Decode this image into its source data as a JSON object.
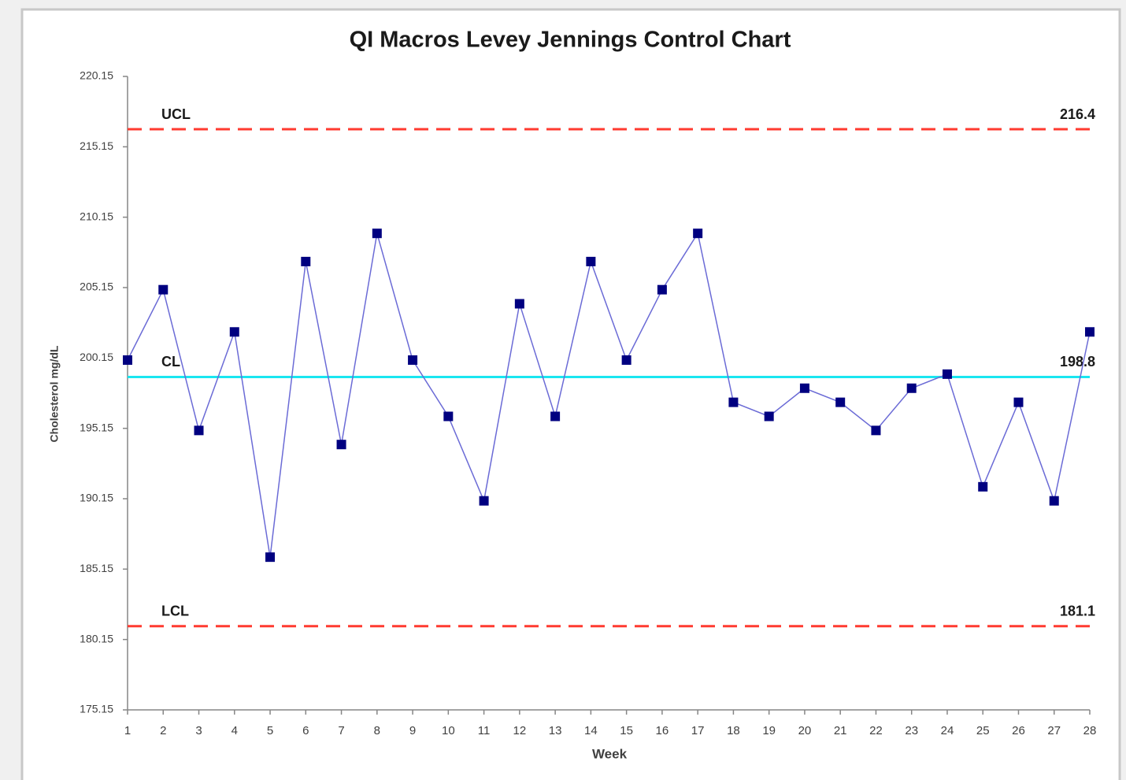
{
  "chart_data": {
    "type": "line",
    "title": "QI Macros Levey Jennings Control Chart",
    "x_label": "Week",
    "y_label": "Cholesterol mg/dL",
    "x": [
      1,
      2,
      3,
      4,
      5,
      6,
      7,
      8,
      9,
      10,
      11,
      12,
      13,
      14,
      15,
      16,
      17,
      18,
      19,
      20,
      21,
      22,
      23,
      24,
      25,
      26,
      27,
      28
    ],
    "xlim": [
      1,
      28
    ],
    "series": [
      {
        "color": "#000080",
        "line_color": "#6b6bd6",
        "values": [
          200,
          205,
          195,
          202,
          186,
          207,
          194,
          209,
          200,
          196,
          190,
          204,
          196,
          207,
          200,
          205,
          209,
          197,
          196,
          198,
          197,
          195,
          198,
          199,
          191,
          197,
          190,
          202
        ]
      }
    ],
    "ylim": [
      175.15,
      220.15
    ],
    "yticks": [
      {
        "value": 175.15,
        "label": "175.15"
      },
      {
        "value": 180.15,
        "label": "180.15"
      },
      {
        "value": 185.15,
        "label": "185.15"
      },
      {
        "value": 190.15,
        "label": "190.15"
      },
      {
        "value": 195.15,
        "label": "195.15"
      },
      {
        "value": 200.15,
        "label": "200.15"
      },
      {
        "value": 205.15,
        "label": "205.15"
      },
      {
        "value": 210.15,
        "label": "210.15"
      },
      {
        "value": 215.15,
        "label": "215.15"
      },
      {
        "value": 220.15,
        "label": "220.15"
      }
    ],
    "control_lines": [
      {
        "name": "UCL",
        "value": 216.4,
        "color": "#ff3b30",
        "style": "dashed"
      },
      {
        "name": "CL",
        "value": 198.8,
        "color": "#19e6f0",
        "style": "solid"
      },
      {
        "name": "LCL",
        "value": 181.1,
        "color": "#ff3b30",
        "style": "dashed"
      }
    ],
    "grid": false
  }
}
